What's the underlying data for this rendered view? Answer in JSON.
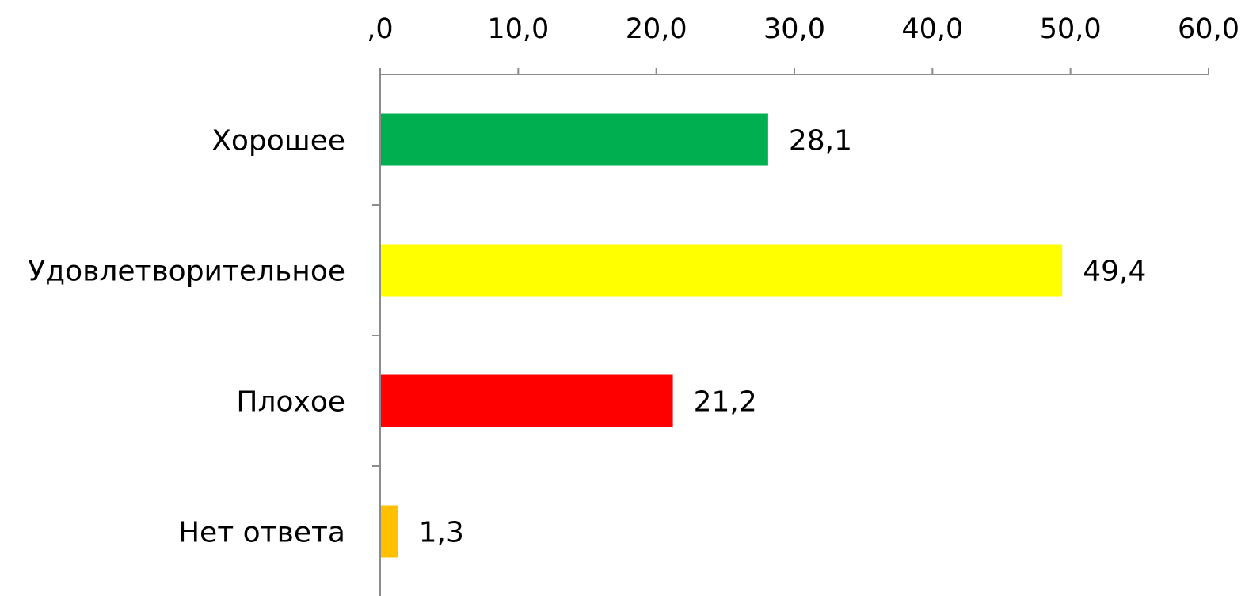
{
  "chart_data": {
    "type": "bar",
    "orientation": "horizontal",
    "axis_position": "top",
    "categories": [
      "Хорошее",
      "Удовлетворительное",
      "Плохое",
      "Нет ответа"
    ],
    "values": [
      28.1,
      49.4,
      21.2,
      1.3
    ],
    "value_labels": [
      "28,1",
      "49,4",
      "21,2",
      "1,3"
    ],
    "colors": [
      "#00b050",
      "#ffff00",
      "#ff0000",
      "#ffc000"
    ],
    "xlim": [
      0,
      60
    ],
    "ticks": [
      0,
      10,
      20,
      30,
      40,
      50,
      60
    ],
    "tick_labels": [
      ",0",
      "10,0",
      "20,0",
      "30,0",
      "40,0",
      "50,0",
      "60,0"
    ],
    "grid": false,
    "legend": "none"
  }
}
